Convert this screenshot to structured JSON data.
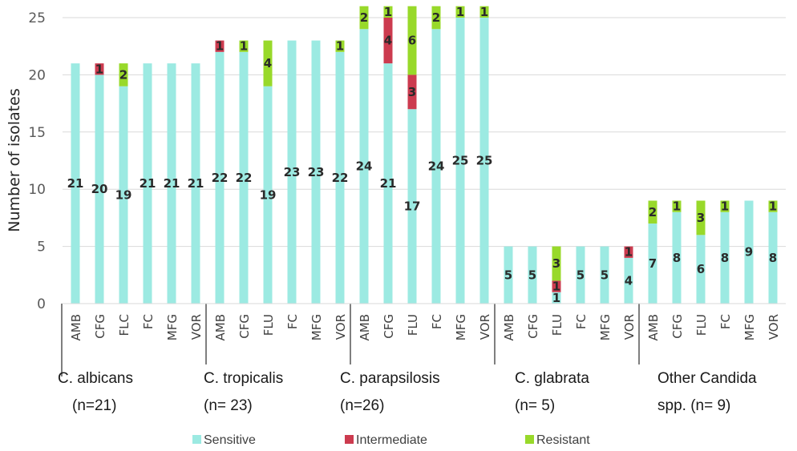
{
  "chart_data": {
    "type": "bar",
    "stacked": true,
    "title": "",
    "xlabel": "",
    "ylabel": "Number of isolates",
    "ylim": [
      0,
      26
    ],
    "yticks": [
      0,
      5,
      10,
      15,
      20,
      25
    ],
    "grid": true,
    "legend_position": "bottom",
    "colors": {
      "Sensitive": "#9ceae2",
      "Intermediate": "#cc3b4f",
      "Resistant": "#98d92a"
    },
    "series_names": [
      "Sensitive",
      "Intermediate",
      "Resistant"
    ],
    "groups": [
      {
        "label_line1": "C. albicans",
        "label_line2": "(n=21)",
        "categories": [
          "AMB",
          "CFG",
          "FLC",
          "FC",
          "MFG",
          "VOR"
        ],
        "series": [
          {
            "name": "Sensitive",
            "values": [
              21,
              20,
              19,
              21,
              21,
              21
            ]
          },
          {
            "name": "Intermediate",
            "values": [
              0,
              1,
              0,
              0,
              0,
              0
            ]
          },
          {
            "name": "Resistant",
            "values": [
              0,
              0,
              2,
              0,
              0,
              0
            ]
          }
        ]
      },
      {
        "label_line1": "C. tropicalis",
        "label_line2": "(n= 23)",
        "categories": [
          "AMB",
          "CFG",
          "FLU",
          "FC",
          "MFG",
          "VOR"
        ],
        "series": [
          {
            "name": "Sensitive",
            "values": [
              22,
              22,
              19,
              23,
              23,
              22
            ]
          },
          {
            "name": "Intermediate",
            "values": [
              1,
              0,
              0,
              0,
              0,
              0
            ]
          },
          {
            "name": "Resistant",
            "values": [
              0,
              1,
              4,
              0,
              0,
              1
            ]
          }
        ]
      },
      {
        "label_line1": "C. parapsilosis",
        "label_line2": "(n=26)",
        "categories": [
          "AMB",
          "CFG",
          "FLU",
          "FC",
          "MFG",
          "VOR"
        ],
        "series": [
          {
            "name": "Sensitive",
            "values": [
              24,
              21,
              17,
              24,
              25,
              25
            ]
          },
          {
            "name": "Intermediate",
            "values": [
              0,
              4,
              3,
              0,
              0,
              0
            ]
          },
          {
            "name": "Resistant",
            "values": [
              2,
              1,
              6,
              2,
              1,
              1
            ]
          }
        ]
      },
      {
        "label_line1": "C. glabrata",
        "label_line2": "(n= 5)",
        "categories": [
          "AMB",
          "CFG",
          "FLU",
          "FC",
          "MFG",
          "VOR"
        ],
        "series": [
          {
            "name": "Sensitive",
            "values": [
              5,
              5,
              1,
              5,
              5,
              4
            ]
          },
          {
            "name": "Intermediate",
            "values": [
              0,
              0,
              1,
              0,
              0,
              1
            ]
          },
          {
            "name": "Resistant",
            "values": [
              0,
              0,
              3,
              0,
              0,
              0
            ]
          }
        ]
      },
      {
        "label_line1": "Other Candida",
        "label_line2": "spp. (n= 9)",
        "categories": [
          "AMB",
          "CFG",
          "FLU",
          "FC",
          "MFG",
          "VOR"
        ],
        "series": [
          {
            "name": "Sensitive",
            "values": [
              7,
              8,
              6,
              8,
              9,
              8
            ]
          },
          {
            "name": "Intermediate",
            "values": [
              0,
              0,
              0,
              0,
              0,
              0
            ]
          },
          {
            "name": "Resistant",
            "values": [
              2,
              1,
              3,
              1,
              0,
              1
            ]
          }
        ]
      }
    ],
    "legend": [
      "Sensitive",
      "Intermediate",
      "Resistant"
    ]
  }
}
